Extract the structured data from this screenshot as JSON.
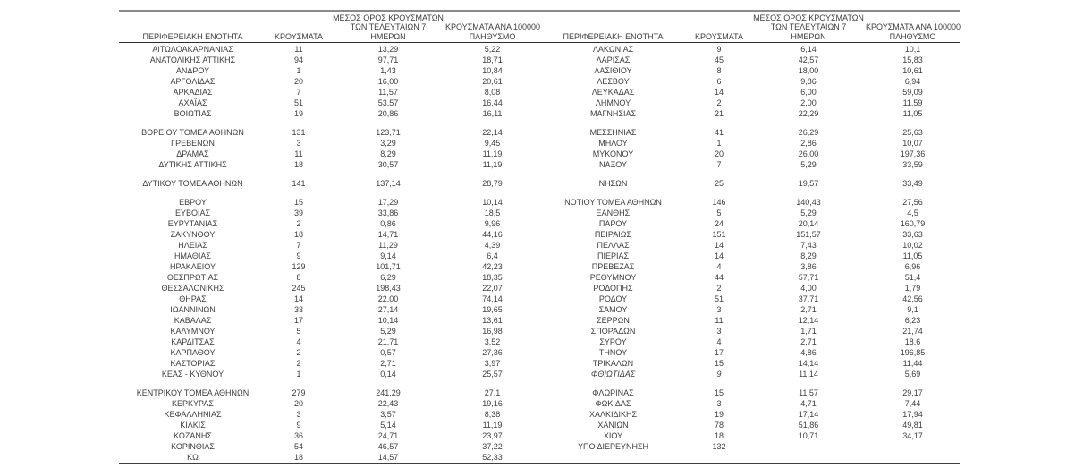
{
  "table": {
    "headers": {
      "region": "ΠΕΡΙΦΕΡΕΙΑΚΗ ΕΝΟΤΗΤΑ",
      "cases": "ΚΡΟΥΣΜΑΤΑ",
      "avg7": [
        "ΜΕΣΟΣ ΟΡΟΣ ΚΡΟΥΣΜΑΤΩΝ",
        "ΤΩΝ ΤΕΛΕΥΤΑΙΩΝ 7",
        "ΗΜΕΡΩΝ"
      ],
      "per100k": [
        "ΚΡΟΥΣΜΑΤΑ ΑΝΑ 100000",
        "ΠΛΗΘΥΣΜΟ"
      ]
    },
    "left": {
      "groups": [
        [
          [
            "ΑΙΤΩΛΟΑΚΑΡΝΑΝΙΑΣ",
            "11",
            "13,29",
            "5,22"
          ],
          [
            "ΑΝΑΤΟΛΙΚΗΣ ΑΤΤΙΚΗΣ",
            "94",
            "97,71",
            "18,71"
          ],
          [
            "ΑΝΔΡΟΥ",
            "1",
            "1,43",
            "10,84"
          ],
          [
            "ΑΡΓΟΛΙΔΑΣ",
            "20",
            "16,00",
            "20,61"
          ],
          [
            "ΑΡΚΑΔΙΑΣ",
            "7",
            "11,57",
            "8,08"
          ],
          [
            "ΑΧΑΪΑΣ",
            "51",
            "53,57",
            "16,44"
          ],
          [
            "ΒΟΙΩΤΙΑΣ",
            "19",
            "20,86",
            "16,11"
          ]
        ],
        [
          [
            "ΒΟΡΕΙΟΥ ΤΟΜΕΑ ΑΘΗΝΩΝ",
            "131",
            "123,71",
            "22,14"
          ],
          [
            "ΓΡΕΒΕΝΩΝ",
            "3",
            "3,29",
            "9,45"
          ],
          [
            "ΔΡΑΜΑΣ",
            "11",
            "8,29",
            "11,19"
          ],
          [
            "ΔΥΤΙΚΗΣ ΑΤΤΙΚΗΣ",
            "18",
            "30,57",
            "11,19"
          ]
        ],
        [
          [
            "ΔΥΤΙΚΟΥ ΤΟΜΕΑ ΑΘΗΝΩΝ",
            "141",
            "137,14",
            "28,79"
          ]
        ],
        [
          [
            "ΕΒΡΟΥ",
            "15",
            "17,29",
            "10,14"
          ],
          [
            "ΕΥΒΟΙΑΣ",
            "39",
            "33,86",
            "18,5"
          ],
          [
            "ΕΥΡΥΤΑΝΙΑΣ",
            "2",
            "0,86",
            "9,96"
          ],
          [
            "ΖΑΚΥΝΘΟΥ",
            "18",
            "14,71",
            "44,16"
          ],
          [
            "ΗΛΕΙΑΣ",
            "7",
            "11,29",
            "4,39"
          ],
          [
            "ΗΜΑΘΙΑΣ",
            "9",
            "9,14",
            "6,4"
          ],
          [
            "ΗΡΑΚΛΕΙΟΥ",
            "129",
            "101,71",
            "42,23"
          ],
          [
            "ΘΕΣΠΡΩΤΙΑΣ",
            "8",
            "6,29",
            "18,35"
          ],
          [
            "ΘΕΣΣΑΛΟΝΙΚΗΣ",
            "245",
            "198,43",
            "22,07"
          ],
          [
            "ΘΗΡΑΣ",
            "14",
            "22,00",
            "74,14"
          ],
          [
            "ΙΩΑΝΝΙΝΩΝ",
            "33",
            "27,14",
            "19,65"
          ],
          [
            "ΚΑΒΑΛΑΣ",
            "17",
            "10,14",
            "13,61"
          ],
          [
            "ΚΑΛΥΜΝΟΥ",
            "5",
            "5,29",
            "16,98"
          ],
          [
            "ΚΑΡΔΙΤΣΑΣ",
            "4",
            "21,71",
            "3,52"
          ],
          [
            "ΚΑΡΠΑΘΟΥ",
            "2",
            "0,57",
            "27,36"
          ],
          [
            "ΚΑΣΤΟΡΙΑΣ",
            "2",
            "2,71",
            "3,97"
          ],
          [
            "ΚΕΑΣ - ΚΥΘΝΟΥ",
            "1",
            "0,14",
            "25,57"
          ]
        ],
        [
          [
            "ΚΕΝΤΡΙΚΟΥ ΤΟΜΕΑ ΑΘΗΝΩΝ",
            "279",
            "241,29",
            "27,1"
          ],
          [
            "ΚΕΡΚΥΡΑΣ",
            "20",
            "22,43",
            "19,16"
          ],
          [
            "ΚΕΦΑΛΛΗΝΙΑΣ",
            "3",
            "3,57",
            "8,38"
          ],
          [
            "ΚΙΛΚΙΣ",
            "9",
            "5,14",
            "11,19"
          ],
          [
            "ΚΟΖΑΝΗΣ",
            "36",
            "24,71",
            "23,97"
          ],
          [
            "ΚΟΡΙΝΘΙΑΣ",
            "54",
            "46,57",
            "37,22"
          ],
          [
            "ΚΩ",
            "18",
            "14,57",
            "52,33"
          ]
        ]
      ]
    },
    "right": {
      "groups": [
        [
          [
            "ΛΑΚΩΝΙΑΣ",
            "9",
            "6,14",
            "10,1"
          ],
          [
            "ΛΑΡΙΣΑΣ",
            "45",
            "42,57",
            "15,83"
          ],
          [
            "ΛΑΣΙΘΙΟΥ",
            "8",
            "18,00",
            "10,61"
          ],
          [
            "ΛΕΣΒΟΥ",
            "6",
            "9,86",
            "6,94"
          ],
          [
            "ΛΕΥΚΑΔΑΣ",
            "14",
            "6,00",
            "59,09"
          ],
          [
            "ΛΗΜΝΟΥ",
            "2",
            "2,00",
            "11,59"
          ],
          [
            "ΜΑΓΝΗΣΙΑΣ",
            "21",
            "22,29",
            "11,05"
          ]
        ],
        [
          [
            "ΜΕΣΣΗΝΙΑΣ",
            "41",
            "26,29",
            "25,63"
          ],
          [
            "ΜΗΛΟΥ",
            "1",
            "2,86",
            "10,07"
          ],
          [
            "ΜΥΚΟΝΟΥ",
            "20",
            "26,00",
            "197,36"
          ],
          [
            "ΝΑΞΟΥ",
            "7",
            "5,29",
            "33,59"
          ]
        ],
        [
          [
            "ΝΗΣΩΝ",
            "25",
            "19,57",
            "33,49"
          ]
        ],
        [
          [
            "ΝΟΤΙΟΥ ΤΟΜΕΑ ΑΘΗΝΩΝ",
            "146",
            "140,43",
            "27,56"
          ],
          [
            "ΞΑΝΘΗΣ",
            "5",
            "5,29",
            "4,5"
          ],
          [
            "ΠΑΡΟΥ",
            "24",
            "20,14",
            "160,79"
          ],
          [
            "ΠΕΙΡΑΙΩΣ",
            "151",
            "151,57",
            "33,63"
          ],
          [
            "ΠΕΛΛΑΣ",
            "14",
            "7,43",
            "10,02"
          ],
          [
            "ΠΙΕΡΙΑΣ",
            "14",
            "8,29",
            "11,05"
          ],
          [
            "ΠΡΕΒΕΖΑΣ",
            "4",
            "3,86",
            "6,96"
          ],
          [
            "ΡΕΘΥΜΝΟΥ",
            "44",
            "57,71",
            "51,4"
          ],
          [
            "ΡΟΔΟΠΗΣ",
            "2",
            "4,00",
            "1,79"
          ],
          [
            "ΡΟΔΟΥ",
            "51",
            "37,71",
            "42,56"
          ],
          [
            "ΣΑΜΟΥ",
            "3",
            "2,71",
            "9,1"
          ],
          [
            "ΣΕΡΡΩΝ",
            "11",
            "12,14",
            "6,23"
          ],
          [
            "ΣΠΟΡΑΔΩΝ",
            "3",
            "1,71",
            "21,74"
          ],
          [
            "ΣΥΡΟΥ",
            "4",
            "2,71",
            "18,6"
          ],
          [
            "ΤΗΝΟΥ",
            "17",
            "4,86",
            "196,85"
          ],
          [
            "ΤΡΙΚΑΛΩΝ",
            "15",
            "14,14",
            "11,44"
          ],
          [
            "ΦΘΙΩΤΙΔΑΣ",
            "9",
            "11,14",
            "5,69",
            true
          ]
        ],
        [
          [
            "ΦΛΩΡΙΝΑΣ",
            "15",
            "11,57",
            "29,17"
          ],
          [
            "ΦΩΚΙΔΑΣ",
            "3",
            "4,71",
            "7,44"
          ],
          [
            "ΧΑΛΚΙΔΙΚΗΣ",
            "19",
            "17,14",
            "17,94"
          ],
          [
            "ΧΑΝΙΩΝ",
            "78",
            "51,86",
            "49,81"
          ],
          [
            "ΧΙΟΥ",
            "18",
            "10,71",
            "34,17"
          ],
          [
            "ΥΠΟ ΔΙΕΡΕΥΝΗΣΗ",
            "132",
            "",
            ""
          ]
        ]
      ]
    }
  }
}
